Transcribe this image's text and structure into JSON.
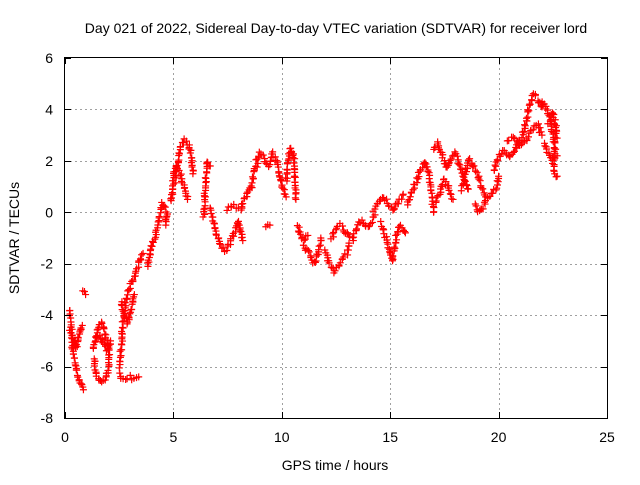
{
  "chart_data": {
    "type": "scatter",
    "title": "Day 021 of 2022, Sidereal Day-to-day VTEC variation (SDTVAR) for receiver lord",
    "xlabel": "GPS time / hours",
    "ylabel": "SDTVAR / TECUs",
    "xlim": [
      0,
      25
    ],
    "ylim": [
      -8,
      6
    ],
    "x_ticks": [
      0,
      5,
      10,
      15,
      20,
      25
    ],
    "y_ticks": [
      -8,
      -6,
      -4,
      -2,
      0,
      2,
      4,
      6
    ],
    "x_tick_labels": [
      "0",
      "5",
      "10",
      "15",
      "20",
      "25"
    ],
    "y_tick_labels": [
      "-8",
      "-6",
      "-4",
      "-2",
      "0",
      "2",
      "4",
      "6"
    ],
    "grid": true,
    "marker": "+",
    "color": "#ff0000",
    "series": [
      {
        "name": "SDTVAR",
        "segments": [
          [
            [
              0.2,
              -3.8
            ],
            [
              0.3,
              -4.6
            ],
            [
              0.35,
              -5.4
            ],
            [
              0.45,
              -5.8
            ],
            [
              0.55,
              -6.2
            ],
            [
              0.7,
              -6.6
            ],
            [
              0.85,
              -6.9
            ]
          ],
          [
            [
              0.25,
              -4.6
            ],
            [
              0.4,
              -5.0
            ],
            [
              0.5,
              -5.3
            ],
            [
              0.6,
              -5.0
            ],
            [
              0.7,
              -4.7
            ],
            [
              0.8,
              -4.4
            ]
          ],
          [
            [
              0.8,
              -3.1
            ],
            [
              0.95,
              -3.2
            ]
          ],
          [
            [
              1.3,
              -5.3
            ],
            [
              1.4,
              -5.0
            ],
            [
              1.5,
              -4.6
            ],
            [
              1.65,
              -4.3
            ],
            [
              1.8,
              -4.5
            ],
            [
              1.95,
              -5.0
            ],
            [
              2.05,
              -5.6
            ],
            [
              2.0,
              -6.1
            ],
            [
              1.85,
              -6.5
            ],
            [
              1.6,
              -6.6
            ],
            [
              1.4,
              -6.2
            ],
            [
              1.35,
              -5.7
            ]
          ],
          [
            [
              1.4,
              -4.9
            ],
            [
              1.6,
              -4.8
            ],
            [
              1.8,
              -5.2
            ],
            [
              2.0,
              -5.4
            ],
            [
              2.1,
              -5.0
            ]
          ],
          [
            [
              2.5,
              -6.3
            ],
            [
              2.6,
              -6.4
            ],
            [
              2.8,
              -6.5
            ],
            [
              3.0,
              -6.4
            ],
            [
              3.2,
              -6.5
            ],
            [
              3.4,
              -6.4
            ]
          ],
          [
            [
              2.5,
              -6.0
            ],
            [
              2.6,
              -5.3
            ],
            [
              2.65,
              -4.5
            ],
            [
              2.75,
              -3.8
            ],
            [
              2.85,
              -3.2
            ],
            [
              3.0,
              -2.9
            ],
            [
              3.2,
              -2.5
            ],
            [
              3.4,
              -2.0
            ],
            [
              3.6,
              -1.6
            ]
          ],
          [
            [
              2.6,
              -3.5
            ],
            [
              2.75,
              -4.0
            ],
            [
              2.9,
              -4.3
            ],
            [
              3.05,
              -3.8
            ],
            [
              3.2,
              -3.2
            ]
          ],
          [
            [
              3.8,
              -2.1
            ],
            [
              3.9,
              -1.6
            ],
            [
              4.1,
              -1.1
            ],
            [
              4.25,
              -0.6
            ],
            [
              4.35,
              -0.1
            ],
            [
              4.5,
              0.4
            ],
            [
              4.7,
              0.0
            ],
            [
              4.65,
              -0.5
            ]
          ],
          [
            [
              4.9,
              0.4
            ],
            [
              5.0,
              1.3
            ],
            [
              5.1,
              1.8
            ],
            [
              5.3,
              1.5
            ],
            [
              5.5,
              1.0
            ],
            [
              5.65,
              0.5
            ]
          ],
          [
            [
              5.1,
              1.2
            ],
            [
              5.2,
              2.0
            ],
            [
              5.3,
              2.5
            ],
            [
              5.5,
              2.8
            ],
            [
              5.7,
              2.6
            ],
            [
              5.85,
              2.1
            ],
            [
              5.9,
              1.5
            ]
          ],
          [
            [
              6.4,
              -0.2
            ],
            [
              6.45,
              0.7
            ],
            [
              6.5,
              1.5
            ],
            [
              6.55,
              2.0
            ],
            [
              6.7,
              1.8
            ]
          ],
          [
            [
              6.7,
              0.2
            ],
            [
              6.85,
              -0.3
            ],
            [
              7.0,
              -0.9
            ],
            [
              7.2,
              -1.3
            ],
            [
              7.4,
              -1.5
            ],
            [
              7.6,
              -1.2
            ],
            [
              7.8,
              -0.8
            ],
            [
              8.0,
              -0.3
            ],
            [
              8.2,
              -1.1
            ]
          ],
          [
            [
              7.5,
              0.1
            ],
            [
              7.7,
              0.3
            ],
            [
              7.9,
              0.2
            ],
            [
              8.1,
              0.1
            ],
            [
              8.2,
              0.4
            ],
            [
              8.4,
              0.7
            ],
            [
              8.6,
              1.0
            ],
            [
              8.7,
              1.6
            ],
            [
              8.9,
              1.9
            ]
          ],
          [
            [
              8.8,
              2.0
            ],
            [
              9.0,
              2.3
            ],
            [
              9.2,
              2.1
            ],
            [
              9.4,
              1.8
            ],
            [
              9.6,
              2.3
            ],
            [
              9.8,
              1.8
            ],
            [
              10.0,
              1.0
            ],
            [
              10.2,
              0.6
            ]
          ],
          [
            [
              9.3,
              -0.6
            ],
            [
              9.45,
              -0.5
            ]
          ],
          [
            [
              10.2,
              1.2
            ],
            [
              10.3,
              2.0
            ],
            [
              10.4,
              2.5
            ],
            [
              10.55,
              2.2
            ],
            [
              10.6,
              1.3
            ],
            [
              10.65,
              0.5
            ]
          ],
          [
            [
              10.75,
              -0.5
            ],
            [
              10.85,
              -0.9
            ],
            [
              11.0,
              -1.1
            ],
            [
              11.2,
              -0.9
            ]
          ],
          [
            [
              11.0,
              -1.3
            ],
            [
              11.3,
              -1.6
            ],
            [
              11.5,
              -2.0
            ],
            [
              11.7,
              -1.5
            ],
            [
              11.8,
              -1.0
            ]
          ],
          [
            [
              12.0,
              -1.5
            ],
            [
              12.2,
              -2.0
            ],
            [
              12.4,
              -2.3
            ],
            [
              12.6,
              -2.1
            ],
            [
              12.8,
              -1.8
            ],
            [
              13.0,
              -1.6
            ],
            [
              13.1,
              -1.2
            ]
          ],
          [
            [
              12.3,
              -1.0
            ],
            [
              12.5,
              -0.6
            ],
            [
              12.7,
              -0.5
            ],
            [
              12.9,
              -0.7
            ],
            [
              13.1,
              -0.9
            ],
            [
              13.3,
              -1.1
            ]
          ],
          [
            [
              13.3,
              -0.9
            ],
            [
              13.5,
              -0.5
            ],
            [
              13.7,
              -0.3
            ],
            [
              13.9,
              -0.6
            ],
            [
              14.1,
              -0.4
            ],
            [
              14.3,
              -0.1
            ]
          ],
          [
            [
              14.2,
              0.1
            ],
            [
              14.5,
              0.4
            ],
            [
              14.7,
              0.6
            ],
            [
              14.9,
              0.3
            ],
            [
              15.1,
              0.1
            ],
            [
              15.4,
              0.4
            ],
            [
              15.6,
              0.7
            ]
          ],
          [
            [
              14.6,
              -0.4
            ],
            [
              14.8,
              -1.0
            ],
            [
              15.0,
              -1.5
            ],
            [
              15.1,
              -1.9
            ],
            [
              15.3,
              -0.8
            ],
            [
              15.5,
              -0.5
            ],
            [
              15.7,
              -0.8
            ]
          ],
          [
            [
              15.8,
              0.3
            ],
            [
              16.0,
              0.8
            ],
            [
              16.2,
              1.2
            ],
            [
              16.4,
              1.7
            ],
            [
              16.6,
              2.0
            ],
            [
              16.8,
              1.4
            ],
            [
              16.9,
              0.7
            ],
            [
              17.0,
              0.0
            ]
          ],
          [
            [
              17.0,
              2.4
            ],
            [
              17.2,
              2.7
            ],
            [
              17.4,
              2.2
            ],
            [
              17.6,
              1.7
            ],
            [
              17.8,
              2.1
            ],
            [
              18.0,
              2.3
            ],
            [
              18.2,
              1.9
            ],
            [
              18.4,
              1.3
            ],
            [
              18.6,
              0.9
            ]
          ],
          [
            [
              17.1,
              0.4
            ],
            [
              17.3,
              0.8
            ],
            [
              17.5,
              1.3
            ],
            [
              17.7,
              0.9
            ],
            [
              17.9,
              0.5
            ]
          ],
          [
            [
              18.3,
              0.9
            ],
            [
              18.5,
              1.6
            ],
            [
              18.6,
              2.1
            ],
            [
              18.8,
              1.9
            ],
            [
              19.0,
              1.5
            ],
            [
              19.2,
              1.0
            ],
            [
              19.4,
              0.6
            ]
          ],
          [
            [
              18.9,
              0.3
            ],
            [
              19.1,
              0.0
            ],
            [
              19.3,
              0.2
            ],
            [
              19.5,
              0.6
            ],
            [
              19.7,
              0.7
            ],
            [
              19.9,
              1.0
            ],
            [
              20.0,
              1.4
            ]
          ],
          [
            [
              19.8,
              1.6
            ],
            [
              20.0,
              2.2
            ],
            [
              20.3,
              2.4
            ],
            [
              20.5,
              2.1
            ],
            [
              20.7,
              2.4
            ],
            [
              20.9,
              2.7
            ],
            [
              21.1,
              3.0
            ],
            [
              21.3,
              3.6
            ],
            [
              21.4,
              4.1
            ],
            [
              21.6,
              4.6
            ],
            [
              21.8,
              4.4
            ],
            [
              22.0,
              4.1
            ]
          ],
          [
            [
              20.4,
              2.8
            ],
            [
              20.7,
              2.9
            ],
            [
              21.0,
              2.6
            ],
            [
              21.3,
              2.8
            ],
            [
              21.5,
              3.2
            ],
            [
              21.8,
              3.4
            ],
            [
              22.0,
              3.0
            ]
          ],
          [
            [
              22.0,
              4.3
            ],
            [
              22.2,
              4.0
            ],
            [
              22.4,
              3.6
            ],
            [
              22.5,
              3.0
            ],
            [
              22.6,
              2.4
            ],
            [
              22.5,
              1.9
            ],
            [
              22.6,
              1.5
            ],
            [
              22.7,
              1.4
            ]
          ],
          [
            [
              22.1,
              2.7
            ],
            [
              22.3,
              2.3
            ],
            [
              22.5,
              2.0
            ],
            [
              22.7,
              2.2
            ]
          ],
          [
            [
              22.3,
              3.4
            ],
            [
              22.5,
              3.9
            ],
            [
              22.6,
              3.5
            ],
            [
              22.7,
              3.1
            ],
            [
              22.6,
              2.7
            ]
          ]
        ]
      }
    ]
  }
}
